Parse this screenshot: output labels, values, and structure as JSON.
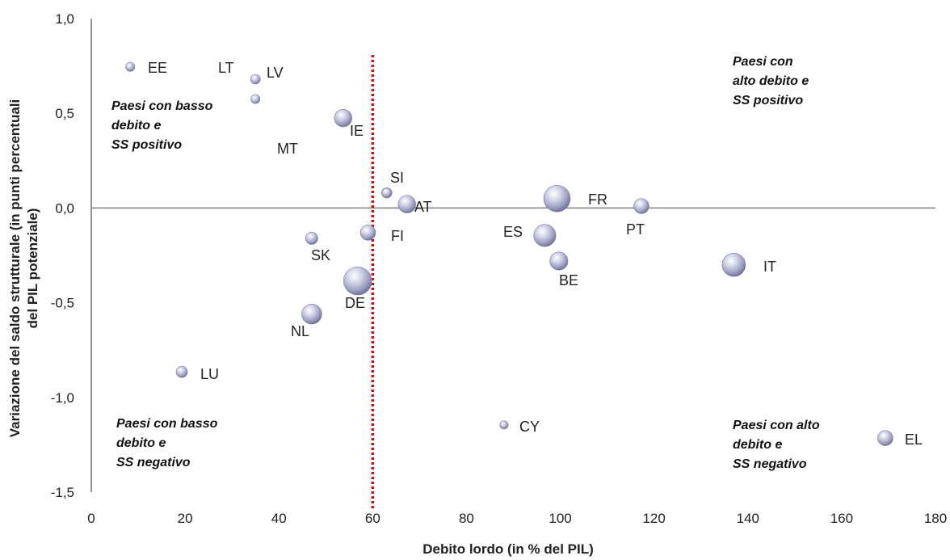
{
  "chart_data": {
    "type": "scatter",
    "title": "",
    "xlabel": "Debito lordo (in % del PIL)",
    "ylabel_lines": [
      "Variazione del saldo strutturale (in punti percentuali",
      "del PIL potenziale)"
    ],
    "xlim": [
      0,
      180
    ],
    "ylim": [
      -1.5,
      1.0
    ],
    "x_ticks": [
      0,
      20,
      40,
      60,
      80,
      100,
      120,
      140,
      160,
      180
    ],
    "x_tick_labels": [
      "0",
      "20",
      "40",
      "60",
      "80",
      "100",
      "120",
      "140",
      "160",
      "180"
    ],
    "y_ticks": [
      1.0,
      0.5,
      0.0,
      -0.5,
      -1.0,
      -1.5
    ],
    "y_tick_labels": [
      "1,0",
      "0,5",
      "0,0",
      "-0,5",
      "-1,0",
      "-1,5"
    ],
    "reference_line_x": 60,
    "reference_line_color": "#cc1111",
    "bubble_color": "#a9abc9",
    "grid": false,
    "legend": "none",
    "points": [
      {
        "label": "EE",
        "x": 8.3,
        "y": 0.745,
        "size": 0.2
      },
      {
        "label": "LV",
        "x": 35.0,
        "y": 0.68,
        "size": 0.25
      },
      {
        "label": "LT",
        "x": 35.0,
        "y": 0.575,
        "size": 0.2
      },
      {
        "label": "IE",
        "x": 53.7,
        "y": 0.475,
        "size": 1.3
      },
      {
        "label": "MT",
        "x": 63.0,
        "y": 0.08,
        "size": 0.25
      },
      {
        "label": "SI",
        "x": 63.0,
        "y": 0.08,
        "size": 0.3
      },
      {
        "label": "AT",
        "x": 67.3,
        "y": 0.02,
        "size": 1.3
      },
      {
        "label": "FR",
        "x": 99.3,
        "y": 0.05,
        "size": 3.5
      },
      {
        "label": "PT",
        "x": 117.3,
        "y": 0.01,
        "size": 0.9
      },
      {
        "label": "FI",
        "x": 59.0,
        "y": -0.13,
        "size": 0.9
      },
      {
        "label": "SK",
        "x": 47.0,
        "y": -0.16,
        "size": 0.5
      },
      {
        "label": "ES",
        "x": 96.7,
        "y": -0.145,
        "size": 2.3
      },
      {
        "label": "BE",
        "x": 99.7,
        "y": -0.28,
        "size": 1.4
      },
      {
        "label": "IT",
        "x": 137.0,
        "y": -0.3,
        "size": 2.6
      },
      {
        "label": "DE",
        "x": 56.8,
        "y": -0.385,
        "size": 4.0
      },
      {
        "label": "NL",
        "x": 47.0,
        "y": -0.56,
        "size": 1.8
      },
      {
        "label": "LU",
        "x": 19.3,
        "y": -0.865,
        "size": 0.4
      },
      {
        "label": "CY",
        "x": 88.0,
        "y": -1.145,
        "size": 0.15
      },
      {
        "label": "EL",
        "x": 169.3,
        "y": -1.215,
        "size": 0.9
      }
    ],
    "annotations": [
      {
        "lines": [
          "Paesi con basso",
          "debito e",
          "SS positivo"
        ]
      },
      {
        "lines": [
          "Paesi con",
          "alto debito e",
          "SS positivo"
        ]
      },
      {
        "lines": [
          "Paesi con basso",
          "debito e",
          "SS negativo"
        ]
      },
      {
        "lines": [
          "Paesi con alto",
          "debito e",
          "SS negativo"
        ]
      }
    ]
  }
}
